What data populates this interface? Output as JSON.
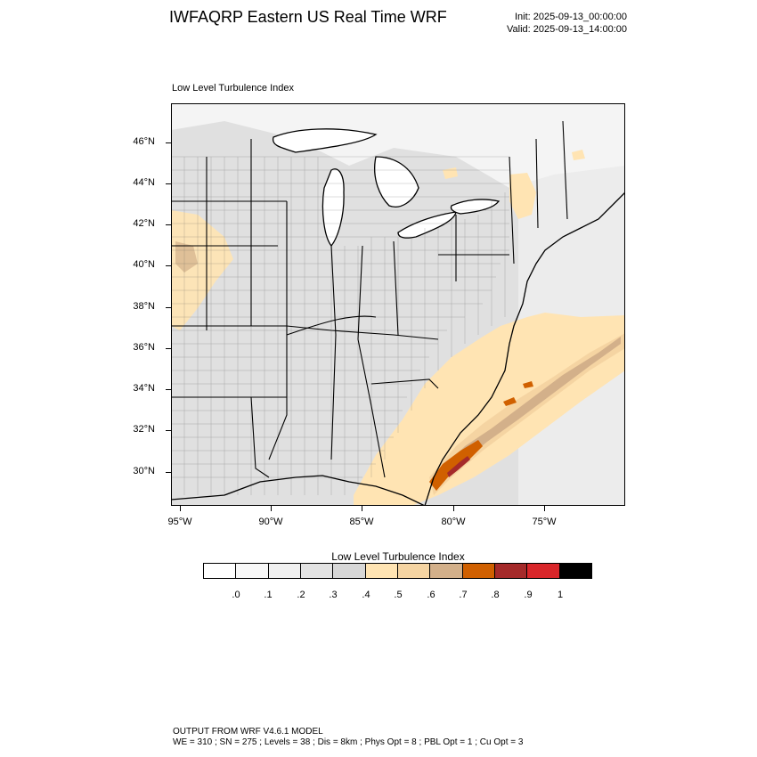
{
  "header": {
    "title": "IWFAQRP Eastern US Real Time WRF",
    "init": "Init: 2025-09-13_00:00:00",
    "valid": "Valid: 2025-09-13_14:00:00"
  },
  "map": {
    "field_label": "Low Level Turbulence Index",
    "lat_labels": [
      "46°N",
      "44°N",
      "42°N",
      "40°N",
      "38°N",
      "36°N",
      "34°N",
      "32°N",
      "30°N"
    ],
    "lon_labels": [
      "95°W",
      "90°W",
      "85°W",
      "80°W",
      "75°W"
    ],
    "boundary_color": "#000000",
    "land_background": "#e3e3e3",
    "water_background": "#ececec"
  },
  "colorbar": {
    "title": "Low Level Turbulence Index",
    "colors": [
      "#ffffff",
      "#f8f8f8",
      "#f0f0f0",
      "#e3e3e3",
      "#d7d7d7",
      "#ffe4b3",
      "#f5d4a2",
      "#d3b08a",
      "#d06000",
      "#a52a2a",
      "#d9262a",
      "#000000"
    ],
    "labels": [
      ".0",
      ".1",
      ".2",
      ".3",
      ".4",
      ".5",
      ".6",
      ".7",
      ".8",
      ".9",
      "1"
    ]
  },
  "footer": {
    "line1": "OUTPUT FROM WRF V4.6.1 MODEL",
    "line2": "WE = 310 ; SN = 275 ; Levels = 38 ; Dis = 8km ; Phys Opt = 8 ; PBL Opt = 1 ; Cu Opt = 3"
  }
}
